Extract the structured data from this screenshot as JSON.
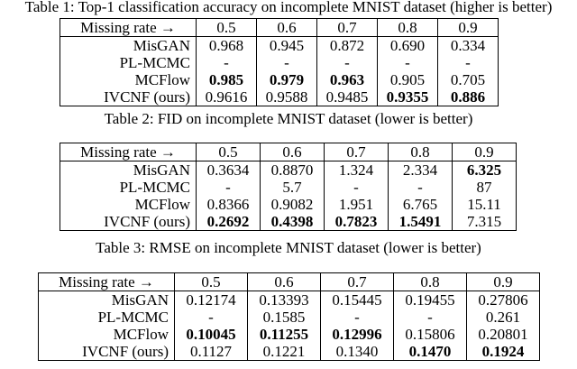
{
  "tables": [
    {
      "caption": "Table 1: Top-1 classification accuracy on incomplete MNIST dataset (higher is better)",
      "header": [
        "Missing rate →",
        "0.5",
        "0.6",
        "0.7",
        "0.8",
        "0.9"
      ],
      "rows": [
        {
          "method": "MisGAN",
          "values": [
            "0.968",
            "0.945",
            "0.872",
            "0.690",
            "0.334"
          ],
          "bold": [
            false,
            false,
            false,
            false,
            false
          ]
        },
        {
          "method": "PL-MCMC",
          "values": [
            "-",
            "-",
            "-",
            "-",
            "-"
          ],
          "bold": [
            false,
            false,
            false,
            false,
            false
          ]
        },
        {
          "method": "MCFlow",
          "values": [
            "0.985",
            "0.979",
            "0.963",
            "0.905",
            "0.705"
          ],
          "bold": [
            true,
            true,
            true,
            false,
            false
          ]
        },
        {
          "method": "IVCNF (ours)",
          "values": [
            "0.9616",
            "0.9588",
            "0.9485",
            "0.9355",
            "0.886"
          ],
          "bold": [
            false,
            false,
            false,
            true,
            true
          ]
        }
      ]
    },
    {
      "caption": "Table 2: FID on incomplete MNIST dataset (lower is better)",
      "header": [
        "Missing rate →",
        "0.5",
        "0.6",
        "0.7",
        "0.8",
        "0.9"
      ],
      "rows": [
        {
          "method": "MisGAN",
          "values": [
            "0.3634",
            "0.8870",
            "1.324",
            "2.334",
            "6.325"
          ],
          "bold": [
            false,
            false,
            false,
            false,
            true
          ]
        },
        {
          "method": "PL-MCMC",
          "values": [
            "-",
            "5.7",
            "-",
            "-",
            "87"
          ],
          "bold": [
            false,
            false,
            false,
            false,
            false
          ]
        },
        {
          "method": "MCFlow",
          "values": [
            "0.8366",
            "0.9082",
            "1.951",
            "6.765",
            "15.11"
          ],
          "bold": [
            false,
            false,
            false,
            false,
            false
          ]
        },
        {
          "method": "IVCNF (ours)",
          "values": [
            "0.2692",
            "0.4398",
            "0.7823",
            "1.5491",
            "7.315"
          ],
          "bold": [
            true,
            true,
            true,
            true,
            false
          ]
        }
      ]
    },
    {
      "caption": "Table 3: RMSE on incomplete MNIST dataset (lower is better)",
      "header": [
        "Missing rate →",
        "0.5",
        "0.6",
        "0.7",
        "0.8",
        "0.9"
      ],
      "rows": [
        {
          "method": "MisGAN",
          "values": [
            "0.12174",
            "0.13393",
            "0.15445",
            "0.19455",
            "0.27806"
          ],
          "bold": [
            false,
            false,
            false,
            false,
            false
          ]
        },
        {
          "method": "PL-MCMC",
          "values": [
            "-",
            "0.1585",
            "-",
            "-",
            "0.261"
          ],
          "bold": [
            false,
            false,
            false,
            false,
            false
          ]
        },
        {
          "method": "MCFlow",
          "values": [
            "0.10045",
            "0.11255",
            "0.12996",
            "0.15806",
            "0.20801"
          ],
          "bold": [
            true,
            true,
            true,
            false,
            false
          ]
        },
        {
          "method": "IVCNF (ours)",
          "values": [
            "0.1127",
            "0.1221",
            "0.1340",
            "0.1470",
            "0.1924"
          ],
          "bold": [
            false,
            false,
            false,
            true,
            true
          ]
        }
      ]
    }
  ]
}
